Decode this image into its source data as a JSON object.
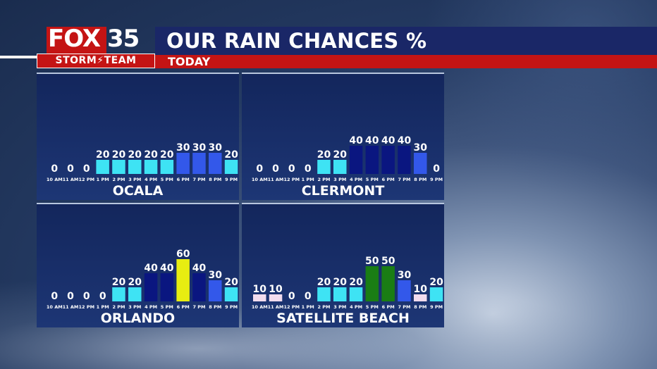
{
  "header": {
    "logo_fox": "FOX",
    "logo_number": "35",
    "logo_team": "STORM⚡TEAM",
    "title": "OUR RAIN CHANCES %",
    "subtitle": "TODAY"
  },
  "colors": {
    "cyan": "#3ee3f4",
    "navy": "#0a1680",
    "royal": "#3358ea",
    "yellow": "#e7ed11",
    "green": "#1a7d14",
    "pink": "#f2dcee"
  },
  "chart_data": [
    {
      "type": "bar",
      "title": "OCALA",
      "categories": [
        "10 AM",
        "11 AM",
        "12 PM",
        "1 PM",
        "2 PM",
        "3 PM",
        "4 PM",
        "5 PM",
        "6 PM",
        "7 PM",
        "8 PM",
        "9 PM"
      ],
      "values": [
        0,
        0,
        0,
        20,
        20,
        20,
        20,
        20,
        30,
        30,
        30,
        20
      ],
      "bar_colors": [
        "cyan",
        "cyan",
        "cyan",
        "cyan",
        "cyan",
        "cyan",
        "cyan",
        "cyan",
        "royal",
        "royal",
        "royal",
        "cyan"
      ],
      "ylim": [
        0,
        60
      ]
    },
    {
      "type": "bar",
      "title": "CLERMONT",
      "categories": [
        "10 AM",
        "11 AM",
        "12 PM",
        "1 PM",
        "2 PM",
        "3 PM",
        "4 PM",
        "5 PM",
        "6 PM",
        "7 PM",
        "8 PM",
        "9 PM"
      ],
      "values": [
        0,
        0,
        0,
        0,
        20,
        20,
        40,
        40,
        40,
        40,
        30,
        0
      ],
      "bar_colors": [
        "cyan",
        "cyan",
        "cyan",
        "cyan",
        "cyan",
        "cyan",
        "navy",
        "navy",
        "navy",
        "navy",
        "royal",
        "cyan"
      ],
      "ylim": [
        0,
        60
      ]
    },
    {
      "type": "bar",
      "title": "ORLANDO",
      "categories": [
        "10 AM",
        "11 AM",
        "12 PM",
        "1 PM",
        "2 PM",
        "3 PM",
        "4 PM",
        "5 PM",
        "6 PM",
        "7 PM",
        "8 PM",
        "9 PM"
      ],
      "values": [
        0,
        0,
        0,
        0,
        20,
        20,
        40,
        40,
        60,
        40,
        30,
        20
      ],
      "bar_colors": [
        "cyan",
        "cyan",
        "cyan",
        "cyan",
        "cyan",
        "cyan",
        "navy",
        "navy",
        "yellow",
        "navy",
        "royal",
        "cyan"
      ],
      "ylim": [
        0,
        60
      ]
    },
    {
      "type": "bar",
      "title": "SATELLITE BEACH",
      "categories": [
        "10 AM",
        "11 AM",
        "12 PM",
        "1 PM",
        "2 PM",
        "3 PM",
        "4 PM",
        "5 PM",
        "6 PM",
        "7 PM",
        "8 PM",
        "9 PM"
      ],
      "values": [
        10,
        10,
        0,
        0,
        20,
        20,
        20,
        50,
        50,
        30,
        10,
        20
      ],
      "bar_colors": [
        "pink",
        "pink",
        "cyan",
        "cyan",
        "cyan",
        "cyan",
        "cyan",
        "green",
        "green",
        "royal",
        "pink",
        "cyan"
      ],
      "ylim": [
        0,
        60
      ]
    }
  ]
}
